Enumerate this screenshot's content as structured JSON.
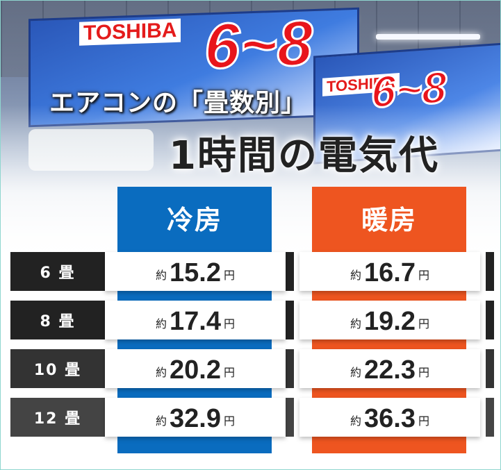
{
  "title": {
    "line1": "エアコンの「畳数別」",
    "line2": "1時間の電気代"
  },
  "photo": {
    "brand": "TOSHIBA",
    "promo": "6~8"
  },
  "columns": {
    "cooling": "冷房",
    "heating": "暖房"
  },
  "prefix": "約",
  "unit": "円",
  "rows": [
    {
      "label": "6 畳",
      "cooling": "15.2",
      "heating": "16.7"
    },
    {
      "label": "8 畳",
      "cooling": "17.4",
      "heating": "19.2"
    },
    {
      "label": "10 畳",
      "cooling": "20.2",
      "heating": "22.3"
    },
    {
      "label": "12 畳",
      "cooling": "32.9",
      "heating": "36.3"
    }
  ],
  "colors": {
    "cooling": "#0a6cbf",
    "heating": "#ee5520",
    "row_labels": [
      "#222222",
      "#222222",
      "#333333",
      "#444444"
    ]
  }
}
